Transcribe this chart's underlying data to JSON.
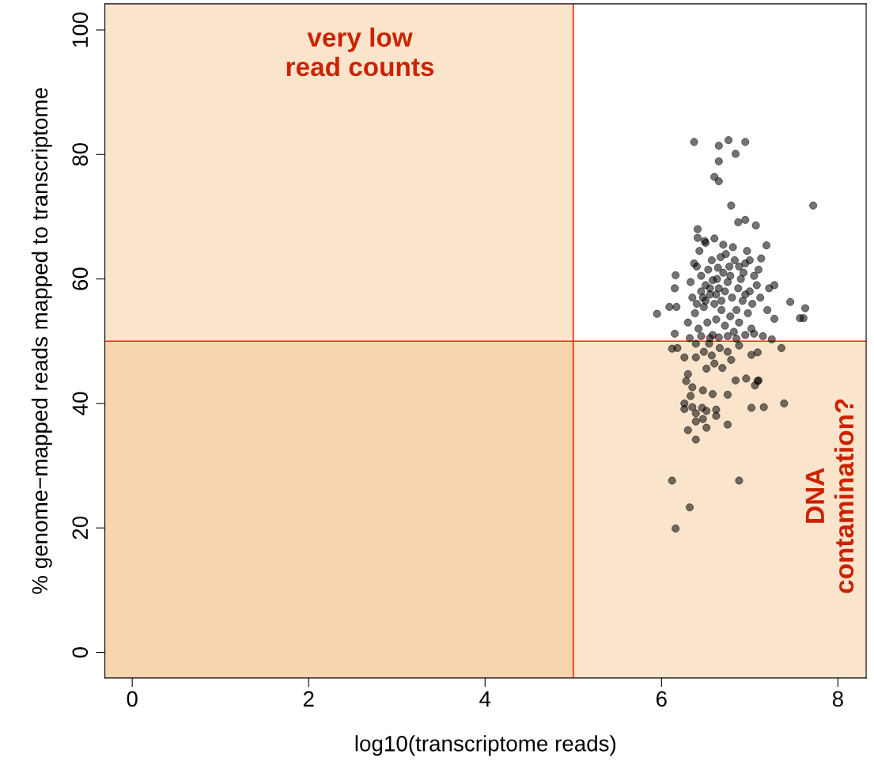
{
  "chart_data": {
    "type": "scatter",
    "xlabel": "log10(transcriptome reads)",
    "ylabel": "% genome−mapped reads mapped to transcriptome",
    "xlim": [
      -0.31,
      8.32
    ],
    "ylim": [
      -4.1,
      104.2
    ],
    "xticks": [
      0,
      2,
      4,
      6,
      8
    ],
    "yticks": [
      0,
      20,
      40,
      60,
      80,
      100
    ],
    "grid": false,
    "marker": "circle",
    "bands": [
      {
        "axis": "x",
        "from": -0.31,
        "to": 5,
        "color": "#f4c48c"
      },
      {
        "axis": "y",
        "from": -4.1,
        "to": 50,
        "color": "#f4c48c"
      }
    ],
    "ref_lines": [
      {
        "axis": "x",
        "value": 5,
        "color": "#ff2a00"
      },
      {
        "axis": "y",
        "value": 50,
        "color": "#ff2a00"
      }
    ],
    "annotations": [
      "very low\nread counts",
      "DNA\ncontamination?"
    ],
    "series": [
      {
        "color": "#000000",
        "x": [
          6.37,
          6.76,
          6.65,
          6.95,
          6.84,
          6.65,
          6.6,
          6.65,
          6.79,
          7.72,
          6.41,
          6.87,
          6.95,
          7.07,
          6.41,
          6.49,
          6.81,
          7.19,
          7.13,
          6.16,
          6.15,
          6.09,
          6.17,
          5.95,
          7.46,
          7.63,
          7.57,
          7.61,
          7.28,
          7.28,
          6.15,
          6.12,
          6.18,
          7.36,
          7.09,
          7.02,
          6.26,
          6.39,
          6.51,
          6.96,
          6.84,
          7.1,
          6.3,
          6.28,
          6.35,
          6.47,
          7.06,
          7.09,
          6.33,
          6.26,
          6.58,
          6.75,
          6.35,
          6.51,
          6.46,
          6.39,
          6.26,
          7.02,
          7.16,
          7.39,
          6.62,
          6.75,
          6.62,
          6.47,
          6.51,
          6.39,
          6.3,
          6.39,
          6.12,
          6.88,
          6.32,
          6.16,
          6.39,
          6.54,
          6.66,
          6.57,
          6.75,
          6.48,
          6.79,
          6.6,
          6.69,
          6.88,
          6.4,
          6.45,
          6.5,
          6.55,
          6.6,
          6.65,
          6.7,
          6.75,
          6.8,
          6.85,
          6.9,
          6.95,
          7.0,
          7.05,
          6.35,
          6.38,
          6.42,
          6.48,
          6.52,
          6.58,
          6.62,
          6.68,
          6.72,
          6.78,
          6.82,
          6.88,
          6.92,
          6.98,
          7.02,
          6.33,
          6.37,
          6.43,
          6.47,
          6.53,
          6.57,
          6.63,
          6.67,
          6.73,
          6.77,
          6.83,
          6.87,
          6.93,
          6.97,
          7.03,
          7.08,
          7.1,
          6.3,
          6.32,
          6.45,
          6.55,
          6.65,
          6.75,
          6.85,
          6.95,
          7.05,
          7.15,
          7.25,
          6.6,
          6.7,
          6.5,
          6.55,
          6.62,
          6.68,
          6.58,
          6.64,
          6.72,
          6.5,
          6.45,
          6.4,
          6.78,
          6.88,
          6.95,
          7.0,
          7.12,
          7.2,
          7.22
        ],
        "values": [
          82.0,
          82.3,
          81.4,
          82.0,
          80.1,
          78.9,
          76.4,
          75.7,
          71.8,
          71.8,
          68.0,
          69.1,
          69.5,
          68.6,
          66.6,
          66.1,
          65.1,
          65.4,
          63.3,
          60.6,
          58.5,
          55.5,
          55.5,
          54.4,
          56.3,
          55.3,
          53.7,
          53.7,
          59.0,
          53.6,
          51.2,
          48.8,
          48.9,
          48.9,
          48.2,
          47.8,
          47.4,
          47.4,
          45.6,
          44.0,
          43.7,
          43.7,
          44.7,
          43.6,
          42.6,
          42.1,
          42.9,
          43.6,
          41.2,
          40.0,
          41.5,
          41.4,
          39.4,
          38.8,
          39.3,
          38.4,
          39.1,
          39.3,
          39.4,
          40.0,
          39.0,
          36.6,
          38.0,
          37.5,
          36.1,
          37.1,
          35.7,
          34.2,
          27.6,
          27.6,
          23.3,
          19.9,
          49.6,
          49.6,
          48.9,
          47.7,
          48.3,
          48.3,
          47.0,
          46.4,
          45.7,
          49.3,
          62.0,
          60.5,
          59.0,
          57.5,
          56.0,
          58.5,
          61.0,
          59.5,
          57.0,
          55.0,
          60.0,
          62.5,
          58.0,
          60.5,
          57.0,
          54.5,
          52.0,
          55.5,
          53.0,
          51.0,
          53.5,
          55.0,
          52.5,
          54.0,
          51.5,
          53.0,
          56.5,
          54.5,
          52.0,
          59.5,
          62.5,
          64.5,
          57.0,
          61.5,
          63.0,
          60.0,
          63.5,
          64.0,
          62.0,
          63.0,
          58.5,
          61.0,
          64.5,
          56.0,
          59.0,
          61.5,
          53.0,
          50.5,
          50.8,
          50.5,
          50.6,
          50.8,
          50.4,
          51.0,
          51.2,
          50.8,
          50.3,
          66.5,
          65.5,
          65.8,
          58.5,
          57.5,
          56.5,
          59.8,
          61.8,
          58.0,
          56.5,
          58.0,
          56.0,
          60.5,
          62.0,
          57.5,
          63.0,
          57.0,
          55.0,
          58.5
        ]
      }
    ]
  }
}
